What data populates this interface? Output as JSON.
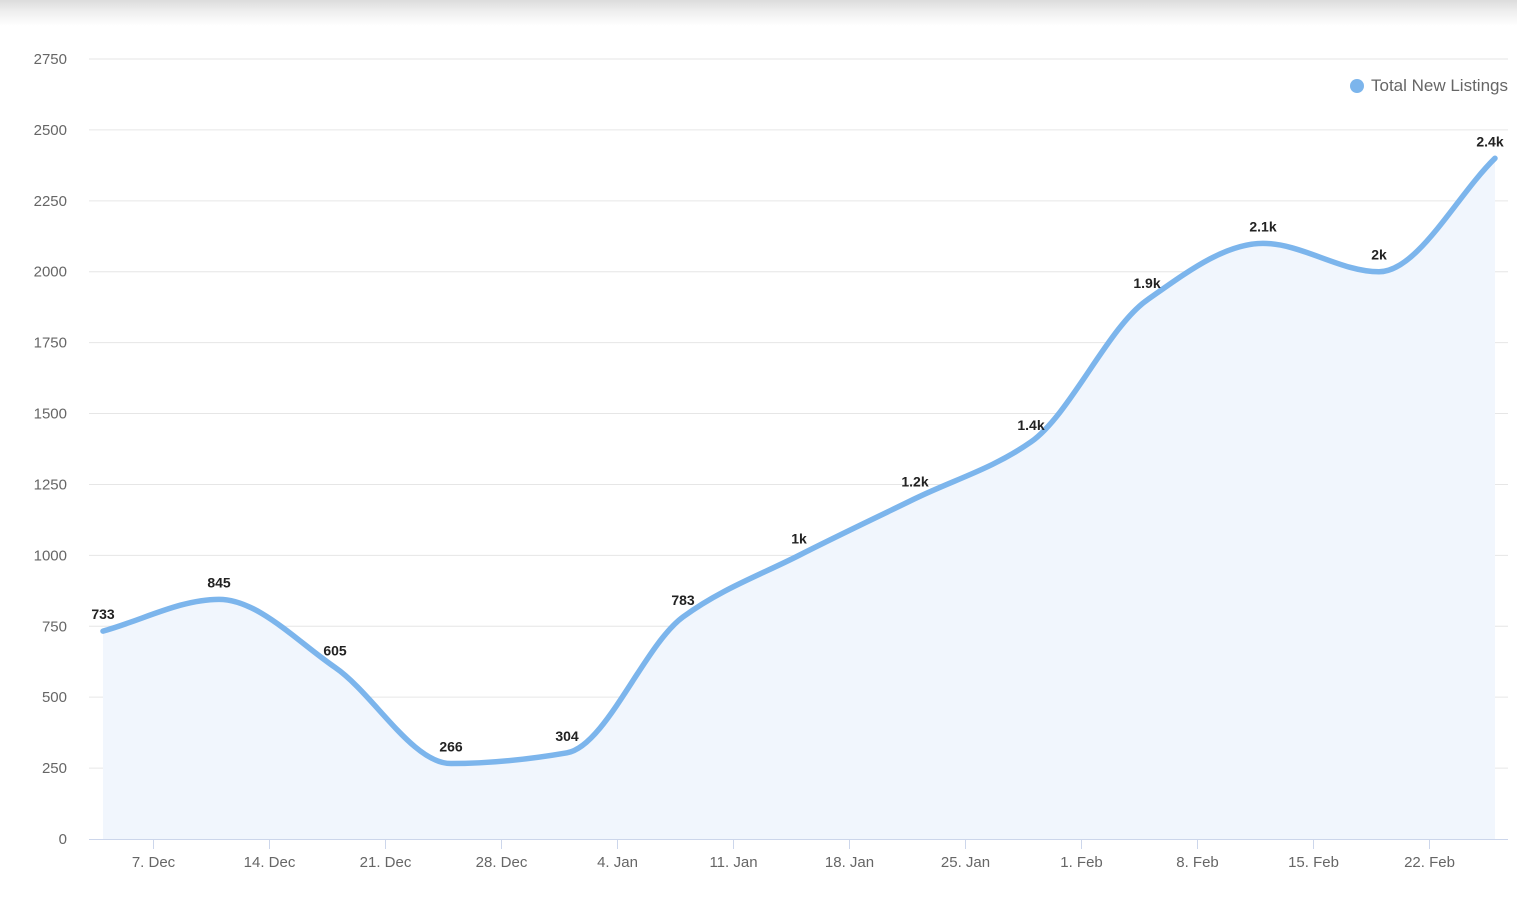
{
  "colors": {
    "series_line": "#7cb5ec",
    "area_fill": "#f1f6fd",
    "grid": "#e6e6e6",
    "axis": "#ccd6eb",
    "tick_text": "#666666",
    "data_label": "#222222"
  },
  "chart_data": {
    "type": "area",
    "x": [
      "2020-12-04",
      "2020-12-11",
      "2020-12-18",
      "2020-12-25",
      "2021-01-01",
      "2021-01-08",
      "2021-01-15",
      "2021-01-22",
      "2021-01-29",
      "2021-02-05",
      "2021-02-12",
      "2021-02-19",
      "2021-02-26"
    ],
    "x_tick_labels": [
      "7. Dec",
      "14. Dec",
      "21. Dec",
      "28. Dec",
      "4. Jan",
      "11. Jan",
      "18. Jan",
      "25. Jan",
      "1. Feb",
      "8. Feb",
      "15. Feb",
      "22. Feb"
    ],
    "x_ticks": [
      "2020-12-07",
      "2020-12-14",
      "2020-12-21",
      "2020-12-28",
      "2021-01-04",
      "2021-01-11",
      "2021-01-18",
      "2021-01-25",
      "2021-02-01",
      "2021-02-08",
      "2021-02-15",
      "2021-02-22"
    ],
    "xlim": [
      "2020-12-04",
      "2021-02-26"
    ],
    "series": [
      {
        "name": "Total New Listings",
        "values": [
          733,
          845,
          605,
          266,
          304,
          783,
          1000,
          1200,
          1400,
          1900,
          2100,
          2000,
          2400
        ],
        "data_labels": [
          "733",
          "845",
          "605",
          "266",
          "304",
          "783",
          "1k",
          "1.2k",
          "1.4k",
          "1.9k",
          "2.1k",
          "2k",
          "2.4k"
        ]
      }
    ],
    "ylim": [
      0,
      2750
    ],
    "y_ticks": [
      0,
      250,
      500,
      750,
      1000,
      1250,
      1500,
      1750,
      2000,
      2250,
      2500,
      2750
    ],
    "y_tick_labels": [
      "0",
      "250",
      "500",
      "750",
      "1000",
      "1250",
      "1500",
      "1750",
      "2000",
      "2250",
      "2500",
      "2750"
    ],
    "title": "",
    "xlabel": "",
    "ylabel": "",
    "grid": true,
    "legend": "top-right"
  }
}
